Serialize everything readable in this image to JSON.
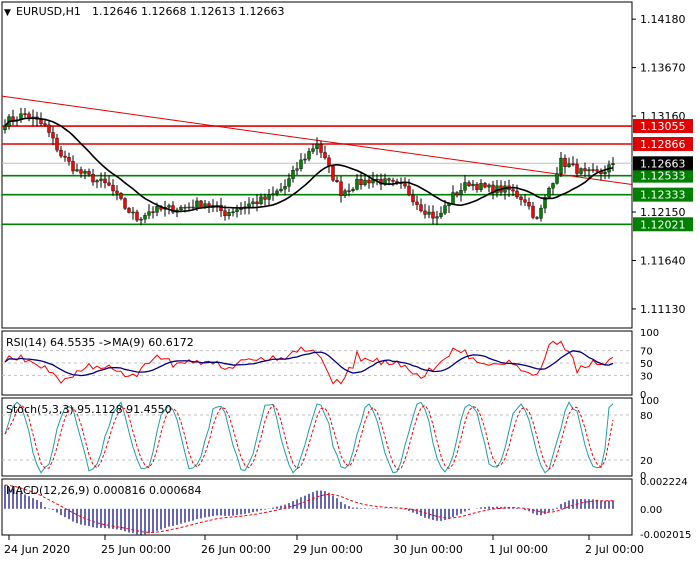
{
  "colors": {
    "background": "#ffffff",
    "frame": "#000000",
    "bull": "#008000",
    "bear": "#ff0000",
    "resistance": "#e00000",
    "support": "#008000",
    "trendline": "#e00000",
    "ma": "#000000",
    "rsi_line": "#000080",
    "rsi_signal": "#ff0000",
    "stoch_main": "#20a0a0",
    "stoch_signal": "#ff0000",
    "macd_hist": "#000080",
    "macd_signal": "#ff0000",
    "price_tag_bg": "#000000",
    "price_tag_text": "#ffffff",
    "grid": "#c0c0c0"
  },
  "chart_data": [
    {
      "type": "candlestick",
      "title": "EURUSD,H1",
      "ohlc_header": "1.12646 1.12668 1.12613 1.12663",
      "x_labels": [
        "24 Jun 2020",
        "25 Jun 00:00",
        "26 Jun 00:00",
        "29 Jun 00:00",
        "30 Jun 00:00",
        "1 Jul 00:00",
        "2 Jul 00:00"
      ],
      "y_ticks": [
        1.1418,
        1.1367,
        1.1316,
        1.1215,
        1.1164,
        1.1113
      ],
      "ylim": [
        1.1094,
        1.1435
      ],
      "current_price": "1.12663",
      "resistance_levels": [
        {
          "value": 1.13055,
          "label": "1.13055"
        },
        {
          "value": 1.12866,
          "label": "1.12866"
        }
      ],
      "support_levels": [
        {
          "value": 1.12533,
          "label": "1.12533"
        },
        {
          "value": 1.12333,
          "label": "1.12333"
        },
        {
          "value": 1.12021,
          "label": "1.12021"
        }
      ],
      "trendline": {
        "start": 1.1337,
        "end": 1.1244
      },
      "anchors": [
        [
          0,
          1.131
        ],
        [
          5,
          1.1318
        ],
        [
          10,
          1.1305
        ],
        [
          14,
          1.1275
        ],
        [
          18,
          1.1258
        ],
        [
          22,
          1.125
        ],
        [
          26,
          1.1242
        ],
        [
          30,
          1.122
        ],
        [
          33,
          1.1208
        ],
        [
          36,
          1.1216
        ],
        [
          40,
          1.1218
        ],
        [
          45,
          1.122
        ],
        [
          50,
          1.1225
        ],
        [
          55,
          1.1214
        ],
        [
          60,
          1.1222
        ],
        [
          66,
          1.123
        ],
        [
          70,
          1.1242
        ],
        [
          74,
          1.1268
        ],
        [
          78,
          1.1288
        ],
        [
          81,
          1.126
        ],
        [
          84,
          1.1236
        ],
        [
          88,
          1.1245
        ],
        [
          92,
          1.125
        ],
        [
          96,
          1.1245
        ],
        [
          100,
          1.124
        ],
        [
          104,
          1.122
        ],
        [
          108,
          1.1208
        ],
        [
          112,
          1.1232
        ],
        [
          116,
          1.1246
        ],
        [
          120,
          1.124
        ],
        [
          126,
          1.1238
        ],
        [
          130,
          1.1228
        ],
        [
          133,
          1.1206
        ],
        [
          136,
          1.124
        ],
        [
          139,
          1.1268
        ],
        [
          142,
          1.1262
        ],
        [
          145,
          1.1255
        ],
        [
          149,
          1.1256
        ],
        [
          152,
          1.1266
        ]
      ]
    },
    {
      "type": "line",
      "title": "RSI(14) 64.5535 ->MA(9) 60.6172",
      "y_ticks": [
        100,
        70,
        50,
        30,
        0
      ],
      "ylim": [
        0,
        100
      ],
      "levels": [
        70,
        50,
        30
      ]
    },
    {
      "type": "line",
      "title": "Stoch(5,3,3) 95.1128 91.4550",
      "y_ticks": [
        100,
        80,
        20,
        0
      ],
      "ylim": [
        0,
        100
      ],
      "levels": [
        80,
        20
      ]
    },
    {
      "type": "bar",
      "title": "MACD(12,26,9) 0.000816 0.000684",
      "y_ticks": [
        "0.002224",
        "0.00",
        "-0.002015"
      ],
      "ylim": [
        -0.002015,
        0.002224
      ]
    }
  ]
}
